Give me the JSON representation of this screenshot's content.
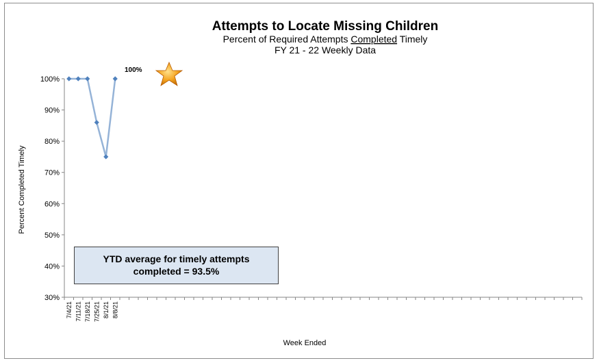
{
  "chart_data": {
    "type": "line",
    "title": "Attempts to Locate Missing Children",
    "subtitle_pre": "Percent of Required Attempts ",
    "subtitle_underlined": "Completed",
    "subtitle_post": " Timely",
    "subtitle2": "FY 21 - 22  Weekly Data",
    "xlabel": "Week Ended",
    "ylabel": "Percent Completed Timely",
    "ylim": [
      30,
      100
    ],
    "yticks": [
      "30%",
      "40%",
      "50%",
      "60%",
      "70%",
      "80%",
      "90%",
      "100%"
    ],
    "categories": [
      "7/4/21",
      "7/11/21",
      "7/18/21",
      "7/25/21",
      "8/1/21",
      "8/8/21"
    ],
    "series": [
      {
        "values": [
          100,
          100,
          100,
          86,
          75,
          100
        ]
      }
    ],
    "annotation": "100%",
    "annotation_icon": "star-icon",
    "grid": false,
    "line_color": "#95b3d7",
    "marker_color": "#4f81bd"
  },
  "ytd_box": {
    "line1": "YTD average for timely attempts",
    "line2": "completed = 93.5%"
  }
}
